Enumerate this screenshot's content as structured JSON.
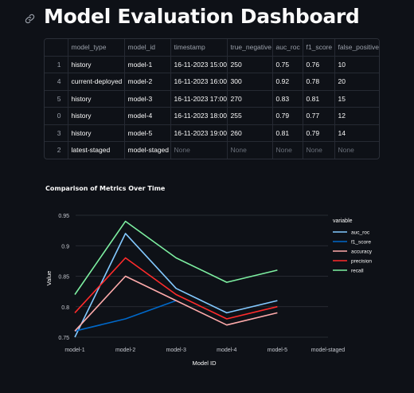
{
  "page": {
    "title": "Model Evaluation Dashboard"
  },
  "table": {
    "columns": [
      "",
      "model_type",
      "model_id",
      "timestamp",
      "true_negative",
      "auc_roc",
      "f1_score",
      "false_positive"
    ],
    "rows": [
      [
        "1",
        "history",
        "model-1",
        "16-11-2023 15:00",
        "250",
        "0.75",
        "0.76",
        "10"
      ],
      [
        "4",
        "current-deployed",
        "model-2",
        "16-11-2023 16:00",
        "300",
        "0.92",
        "0.78",
        "20"
      ],
      [
        "5",
        "history",
        "model-3",
        "16-11-2023 17:00",
        "270",
        "0.83",
        "0.81",
        "15"
      ],
      [
        "0",
        "history",
        "model-4",
        "16-11-2023 18:00",
        "255",
        "0.79",
        "0.77",
        "12"
      ],
      [
        "3",
        "history",
        "model-5",
        "16-11-2023 19:00",
        "260",
        "0.81",
        "0.79",
        "14"
      ],
      [
        "2",
        "latest-staged",
        "model-staged",
        "None",
        "None",
        "None",
        "None",
        "None"
      ]
    ]
  },
  "chart_data": {
    "type": "line",
    "title": "Comparison of Metrics Over Time",
    "xlabel": "Model ID",
    "ylabel": "Value",
    "categories": [
      "model-1",
      "model-2",
      "model-3",
      "model-4",
      "model-5",
      "model-staged"
    ],
    "ylim": [
      0.75,
      0.95
    ],
    "yticks": [
      "0.75",
      "0.8",
      "0.85",
      "0.9",
      "0.95"
    ],
    "grid": true,
    "legend_title": "variable",
    "legend_position": "right",
    "series": [
      {
        "name": "auc_roc",
        "color": "#83c9ff",
        "values": [
          0.75,
          0.92,
          0.83,
          0.79,
          0.81,
          null
        ]
      },
      {
        "name": "f1_score",
        "color": "#0068c9",
        "values": [
          0.76,
          0.78,
          0.81,
          null,
          null,
          null
        ]
      },
      {
        "name": "accuracy",
        "color": "#ffabab",
        "values": [
          0.76,
          0.85,
          0.81,
          0.77,
          0.79,
          null
        ]
      },
      {
        "name": "precision",
        "color": "#ff2b2b",
        "values": [
          0.79,
          0.88,
          0.82,
          0.78,
          0.8,
          null
        ]
      },
      {
        "name": "recall",
        "color": "#7defa1",
        "values": [
          0.82,
          0.94,
          0.88,
          0.84,
          0.86,
          null
        ]
      }
    ]
  }
}
